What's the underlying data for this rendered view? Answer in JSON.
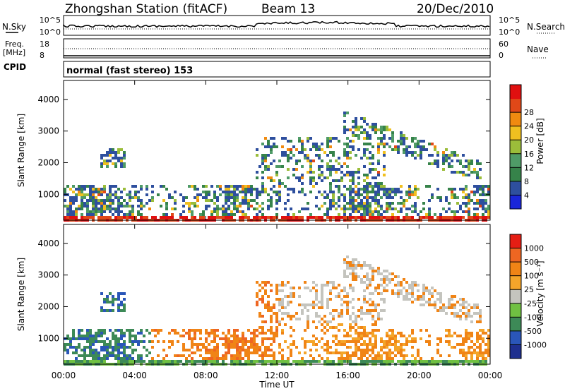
{
  "header": {
    "station": "Zhongshan Station (fitACF)",
    "beam": "Beam 13",
    "date": "20/Dec/2010"
  },
  "noise_panel": {
    "left_label": "N.Sky",
    "left_ticks": [
      "10^5",
      "10^0"
    ],
    "right_ticks": [
      "10^5",
      "10^0"
    ],
    "right_label": "N.Search"
  },
  "freq_panel": {
    "left_label_1": "Freq.",
    "left_label_2": "[MHz]",
    "left_ticks": [
      "18",
      "8"
    ],
    "right_ticks": [
      "60",
      "0"
    ],
    "right_label": "Nave"
  },
  "cpid_panel": {
    "label": "CPID",
    "text": "normal (fast stereo) 153"
  },
  "colors": {
    "power": [
      "#1a26d9",
      "#2e4f9e",
      "#36834a",
      "#4f9b67",
      "#9bbd3a",
      "#f0c020",
      "#f08a10",
      "#e04818",
      "#e01010"
    ],
    "velocity": [
      "#1e2f8f",
      "#2a56b8",
      "#3d8a57",
      "#70c142",
      "#c4c4be",
      "#f4a52a",
      "#f08416",
      "#ee6622",
      "#e51e14"
    ]
  },
  "chart_data": [
    {
      "type": "heatmap",
      "name": "power",
      "ylabel": "Slant Range [km]",
      "y_ticks": [
        "1000",
        "2000",
        "3000",
        "4000"
      ],
      "ylim": [
        180,
        4600
      ],
      "xlim": [
        "00:00",
        "24:00"
      ],
      "colorbar_label": "Power [dB]",
      "colorbar_ticks": [
        "4",
        "8",
        "12",
        "16",
        "20",
        "24",
        "28"
      ],
      "colorbar_range": [
        0,
        32
      ]
    },
    {
      "type": "heatmap",
      "name": "velocity",
      "ylabel": "Slant Range [km]",
      "y_ticks": [
        "1000",
        "2000",
        "3000",
        "4000"
      ],
      "ylim": [
        180,
        4600
      ],
      "xlim": [
        "00:00",
        "24:00"
      ],
      "colorbar_label": "Velocity [m s⁻¹]",
      "colorbar_ticks": [
        "1000",
        "500",
        "100",
        "25",
        "-25",
        "-100",
        "-500",
        "-1000"
      ]
    }
  ],
  "x_axis": {
    "tick_labels": [
      "00:00",
      "04:00",
      "08:00",
      "12:00",
      "16:00",
      "20:00",
      "00:00"
    ],
    "label": "Time UT"
  }
}
